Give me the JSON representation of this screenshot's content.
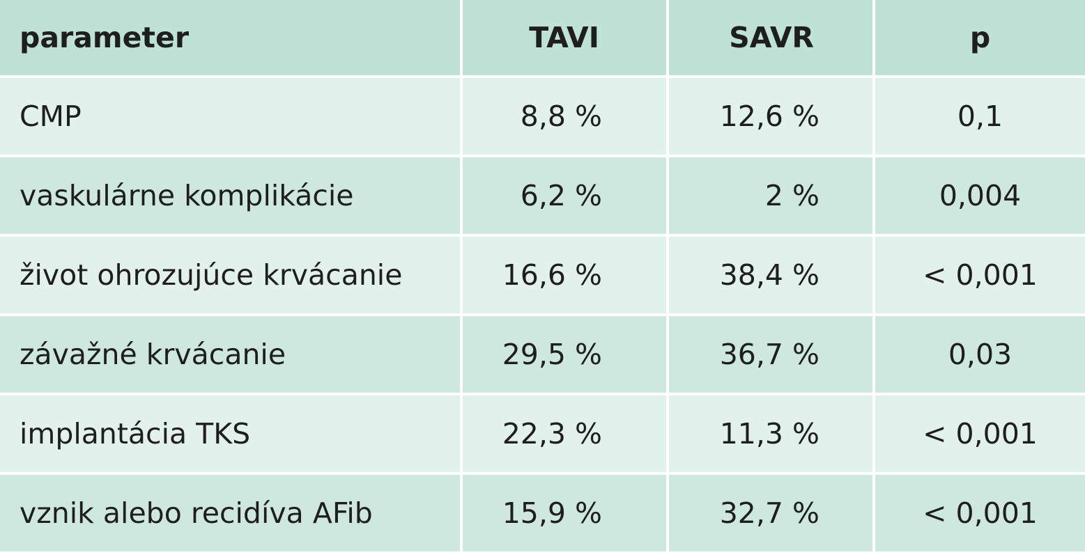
{
  "table": {
    "headers": {
      "parameter": "parameter",
      "tavi": "TAVI",
      "savr": "SAVR",
      "p": "p"
    },
    "rows": [
      {
        "parameter": "CMP",
        "tavi": "8,8 %",
        "savr": "12,6 %",
        "p": "0,1"
      },
      {
        "parameter": "vaskulárne komplikácie",
        "tavi": "6,2 %",
        "savr": "2 %",
        "p": "0,004"
      },
      {
        "parameter": "život ohrozujúce krvácanie",
        "tavi": "16,6 %",
        "savr": "38,4 %",
        "p": "< 0,001"
      },
      {
        "parameter": "závažné krvácanie",
        "tavi": "29,5 %",
        "savr": "36,7 %",
        "p": "0,03"
      },
      {
        "parameter": "implantácia TKS",
        "tavi": "22,3 %",
        "savr": "11,3 %",
        "p": "< 0,001"
      },
      {
        "parameter": "vznik alebo recidíva AFib",
        "tavi": "15,9 %",
        "savr": "32,7 %",
        "p": "< 0,001"
      }
    ]
  },
  "colors": {
    "header_bg": "#bfe1d6",
    "row_light": "#e3f1ec",
    "row_dark": "#cfe8df",
    "text": "#1e1e1e"
  }
}
